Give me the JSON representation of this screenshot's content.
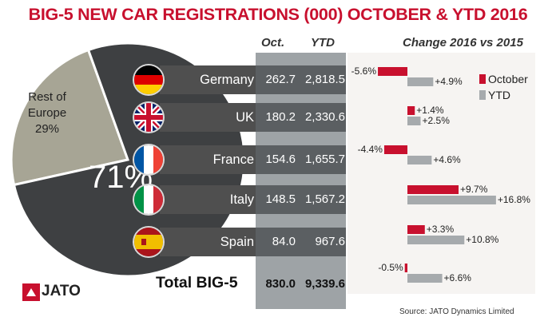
{
  "title": "BIG-5 NEW CAR REGISTRATIONS (000) OCTOBER & YTD 2016",
  "headers": {
    "oct": "Oct.",
    "ytd": "YTD",
    "change": "Change 2016 vs 2015"
  },
  "pie": {
    "big_label": "71%",
    "rest_line1": "Rest of",
    "rest_line2": "Europe",
    "rest_pct": "29%"
  },
  "chart_data": {
    "type": "bar",
    "title": "Change 2016 vs 2015",
    "categories": [
      "Germany",
      "UK",
      "France",
      "Italy",
      "Spain",
      "Total BIG-5"
    ],
    "series": [
      {
        "name": "October",
        "values": [
          -5.6,
          1.4,
          -4.4,
          9.7,
          3.3,
          -0.5
        ],
        "labels": [
          "-5.6%",
          "+1.4%",
          "-4.4%",
          "+9.7%",
          "+3.3%",
          "-0.5%"
        ]
      },
      {
        "name": "YTD",
        "values": [
          4.9,
          2.5,
          4.6,
          16.8,
          10.8,
          6.6
        ],
        "labels": [
          "+4.9%",
          "+2.5%",
          "+4.6%",
          "+16.8%",
          "+10.8%",
          "+6.6%"
        ]
      }
    ],
    "colors": {
      "october": "#c8102e",
      "ytd": "#a6aaad"
    },
    "legend": "top-right",
    "pie": {
      "type": "pie",
      "slices": [
        {
          "label": "BIG-5",
          "value": 71
        },
        {
          "label": "Rest of Europe",
          "value": 29
        }
      ]
    }
  },
  "rows": [
    {
      "country": "Germany",
      "oct": "262.7",
      "ytd": "2,818.5"
    },
    {
      "country": "UK",
      "oct": "180.2",
      "ytd": "2,330.6"
    },
    {
      "country": "France",
      "oct": "154.6",
      "ytd": "1,655.7"
    },
    {
      "country": "Italy",
      "oct": "148.5",
      "ytd": "1,567.2"
    },
    {
      "country": "Spain",
      "oct": "84.0",
      "ytd": "967.6"
    }
  ],
  "total": {
    "label": "Total BIG-5",
    "oct": "830.0",
    "ytd": "9,339.6"
  },
  "source": "Source: JATO Dynamics Limited",
  "logo": "JATO",
  "colors": {
    "title": "#c8102e",
    "pie_dark": "#3e4042",
    "pie_light": "#a7a595",
    "row_dark": "#4f4f4f"
  }
}
